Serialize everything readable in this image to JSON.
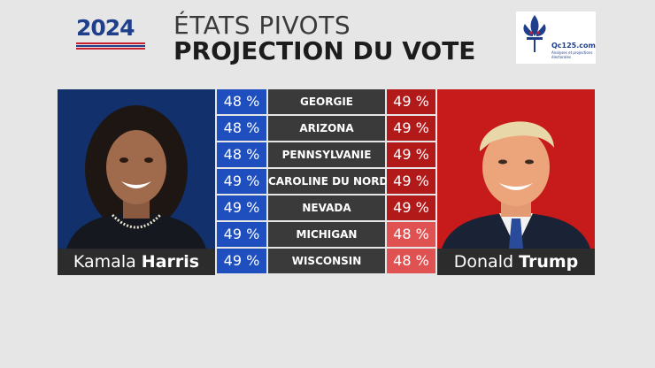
{
  "header": {
    "year": "2024",
    "title_line1": "ÉTATS PIVOTS",
    "title_line2": "PROJECTION DU VOTE",
    "source_logo": {
      "name": "Qc125.com",
      "tagline": "Analyses et projections électorales"
    }
  },
  "candidates": {
    "left": {
      "first": "Kamala",
      "last": "Harris"
    },
    "right": {
      "first": "Donald",
      "last": "Trump"
    }
  },
  "rows": [
    {
      "state": "GEORGIE",
      "harris": "48 %",
      "trump": "49 %"
    },
    {
      "state": "ARIZONA",
      "harris": "48 %",
      "trump": "49 %"
    },
    {
      "state": "PENNSYLVANIE",
      "harris": "48 %",
      "trump": "49 %"
    },
    {
      "state": "CAROLINE DU NORD",
      "harris": "49 %",
      "trump": "49 %"
    },
    {
      "state": "NEVADA",
      "harris": "49 %",
      "trump": "49 %"
    },
    {
      "state": "MICHIGAN",
      "harris": "49 %",
      "trump": "48 %"
    },
    {
      "state": "WISCONSIN",
      "harris": "49 %",
      "trump": "48 %"
    }
  ],
  "colors": {
    "dem_blue": "#1f4fbf",
    "rep_red": "#b21a1a",
    "rep_red_light": "#e05252",
    "state_gray": "#3a3a3a"
  }
}
